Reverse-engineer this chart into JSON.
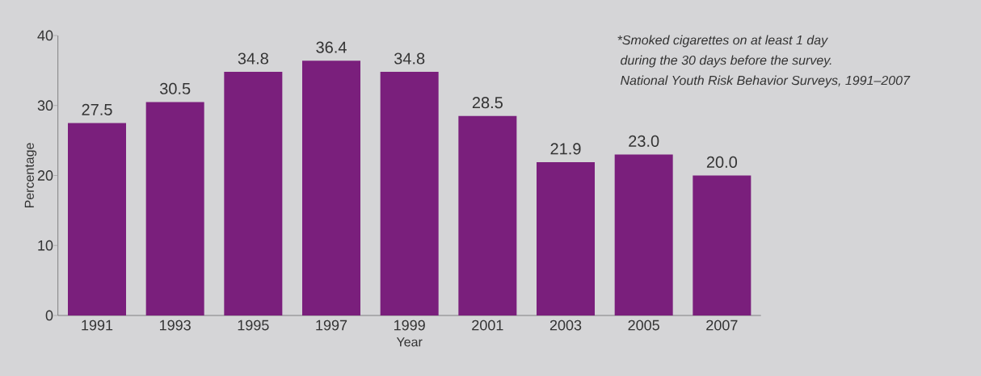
{
  "chart_data": {
    "type": "bar",
    "xlabel": "Year",
    "ylabel": "Percentage",
    "categories": [
      "1991",
      "1993",
      "1995",
      "1997",
      "1999",
      "2001",
      "2003",
      "2005",
      "2007"
    ],
    "values": [
      27.5,
      30.5,
      34.8,
      36.4,
      34.8,
      28.5,
      21.9,
      23.0,
      20.0
    ],
    "value_labels": [
      "27.5",
      "30.5",
      "34.8",
      "36.4",
      "34.8",
      "28.5",
      "21.9",
      "23.0",
      "20.0"
    ],
    "color": "#7a1f7c",
    "ylim": [
      0,
      40
    ],
    "yticks": [
      0,
      10,
      20,
      30,
      40
    ],
    "annotations": [
      "*Smoked cigarettes on at least 1 day",
      "during the 30 days before the survey.",
      "National Youth Risk Behavior Surveys, 1991–2007"
    ]
  }
}
